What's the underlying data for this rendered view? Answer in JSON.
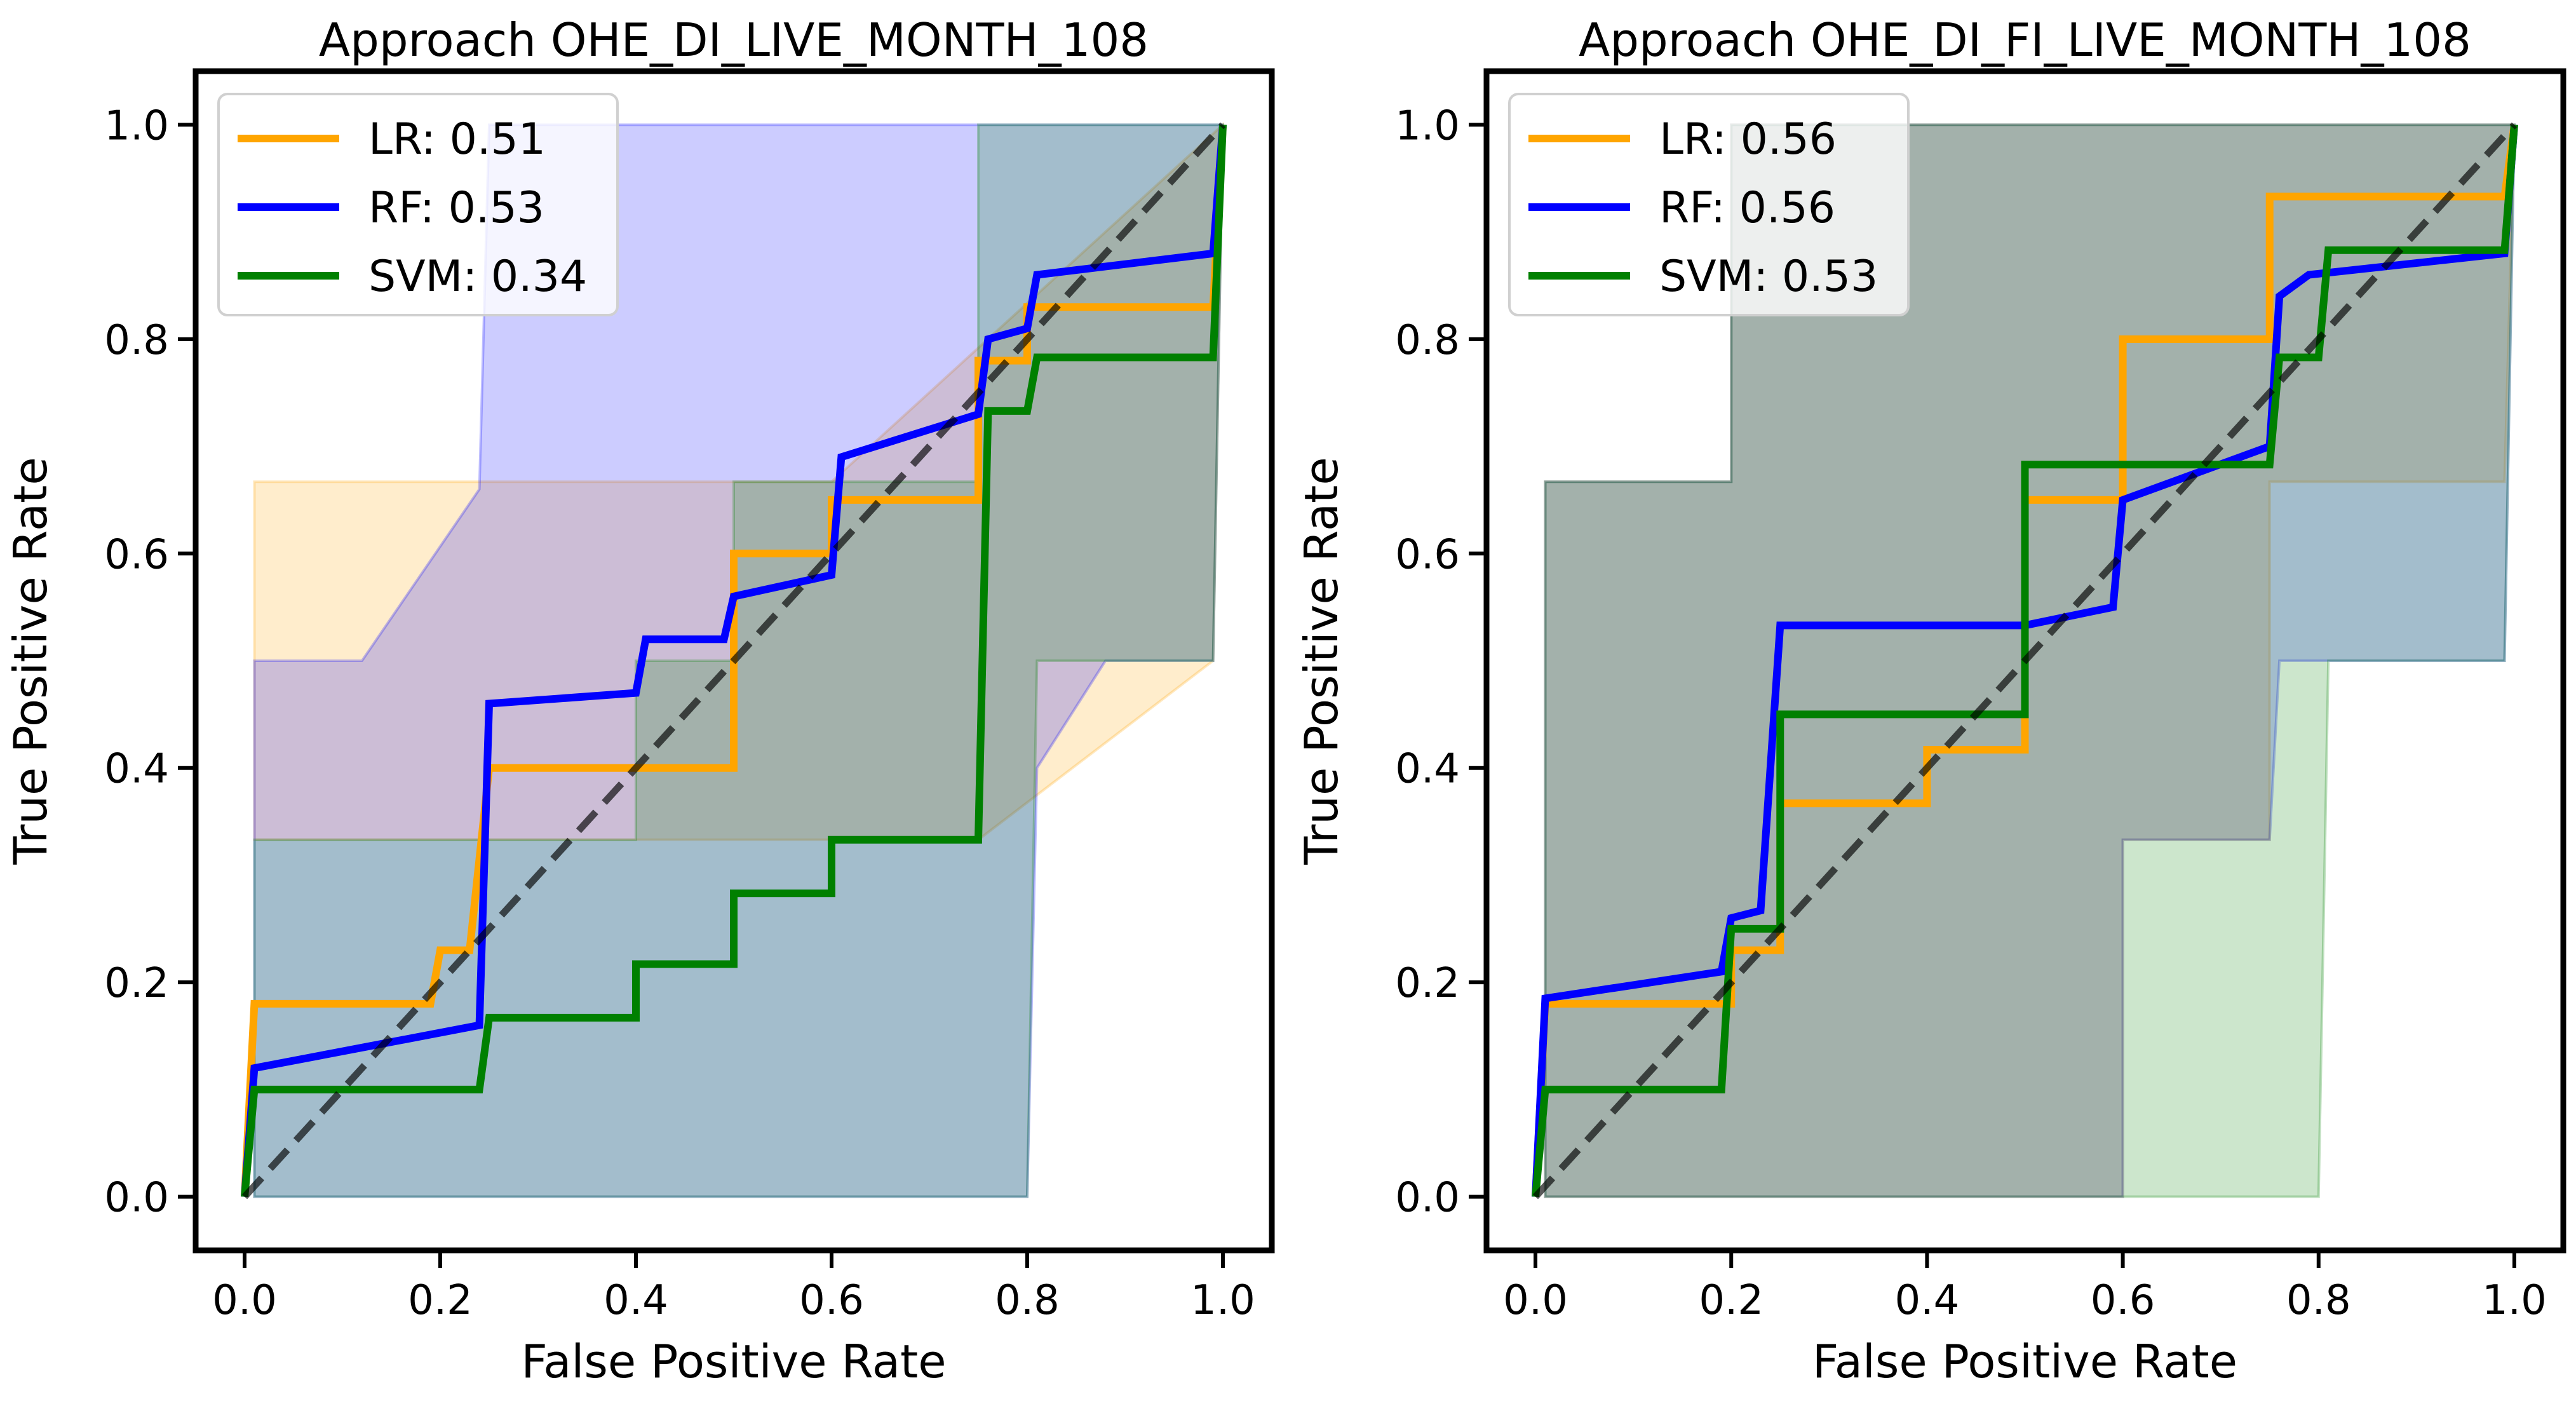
{
  "chart_data": [
    {
      "type": "line",
      "title": "Approach OHE_DI_LIVE_MONTH_108",
      "xlabel": "False Positive Rate",
      "ylabel": "True Positive Rate",
      "xlim": [
        -0.05,
        1.05
      ],
      "ylim": [
        -0.05,
        1.05
      ],
      "xticks": [
        "0.0",
        "0.2",
        "0.4",
        "0.6",
        "0.8",
        "1.0"
      ],
      "yticks": [
        "0.0",
        "0.2",
        "0.4",
        "0.6",
        "0.8",
        "1.0"
      ],
      "legend_position": "top-left",
      "diagonal": [
        [
          0,
          0
        ],
        [
          1,
          1
        ]
      ],
      "series": [
        {
          "name": "LR: 0.51",
          "color": "#ffa500",
          "points": [
            [
              0,
              0
            ],
            [
              0.01,
              0.18
            ],
            [
              0.19,
              0.18
            ],
            [
              0.2,
              0.23
            ],
            [
              0.23,
              0.23
            ],
            [
              0.25,
              0.4
            ],
            [
              0.5,
              0.4
            ],
            [
              0.5,
              0.6
            ],
            [
              0.6,
              0.6
            ],
            [
              0.6,
              0.65
            ],
            [
              0.75,
              0.65
            ],
            [
              0.75,
              0.78
            ],
            [
              0.8,
              0.78
            ],
            [
              0.8,
              0.83
            ],
            [
              0.99,
              0.83
            ],
            [
              1.0,
              1.0
            ]
          ],
          "band": {
            "color": "#ffa500",
            "upper": [
              [
                0.01,
                0.667
              ],
              [
                0.25,
                0.667
              ],
              [
                0.6,
                0.667
              ],
              [
                1.0,
                1.0
              ]
            ],
            "lower": [
              [
                0.01,
                0.333
              ],
              [
                0.6,
                0.333
              ],
              [
                0.75,
                0.333
              ],
              [
                0.99,
                0.5
              ]
            ]
          }
        },
        {
          "name": "RF: 0.53",
          "color": "#0000ff",
          "points": [
            [
              0,
              0
            ],
            [
              0.01,
              0.12
            ],
            [
              0.24,
              0.16
            ],
            [
              0.25,
              0.46
            ],
            [
              0.4,
              0.47
            ],
            [
              0.41,
              0.52
            ],
            [
              0.49,
              0.52
            ],
            [
              0.5,
              0.56
            ],
            [
              0.6,
              0.58
            ],
            [
              0.61,
              0.69
            ],
            [
              0.75,
              0.73
            ],
            [
              0.76,
              0.8
            ],
            [
              0.8,
              0.81
            ],
            [
              0.81,
              0.86
            ],
            [
              0.99,
              0.88
            ],
            [
              1.0,
              1.0
            ]
          ],
          "band": {
            "color": "#0000ff",
            "upper": [
              [
                0.01,
                0.5
              ],
              [
                0.12,
                0.5
              ],
              [
                0.24,
                0.66
              ],
              [
                0.25,
                1.0
              ],
              [
                1.0,
                1.0
              ]
            ],
            "lower": [
              [
                0.01,
                0.0
              ],
              [
                0.8,
                0.0
              ],
              [
                0.81,
                0.4
              ],
              [
                0.88,
                0.5
              ],
              [
                0.99,
                0.5
              ]
            ]
          }
        },
        {
          "name": "SVM: 0.34",
          "color": "#008000",
          "points": [
            [
              0,
              0
            ],
            [
              0.01,
              0.1
            ],
            [
              0.24,
              0.1
            ],
            [
              0.25,
              0.167
            ],
            [
              0.4,
              0.167
            ],
            [
              0.4,
              0.217
            ],
            [
              0.5,
              0.217
            ],
            [
              0.5,
              0.283
            ],
            [
              0.6,
              0.283
            ],
            [
              0.6,
              0.333
            ],
            [
              0.75,
              0.333
            ],
            [
              0.76,
              0.733
            ],
            [
              0.8,
              0.733
            ],
            [
              0.81,
              0.783
            ],
            [
              0.99,
              0.783
            ],
            [
              1.0,
              1.0
            ]
          ],
          "band": {
            "color": "#008000",
            "upper": [
              [
                0.01,
                0.333
              ],
              [
                0.4,
                0.333
              ],
              [
                0.4,
                0.5
              ],
              [
                0.5,
                0.5
              ],
              [
                0.5,
                0.667
              ],
              [
                0.75,
                0.667
              ],
              [
                0.75,
                1.0
              ],
              [
                1.0,
                1.0
              ]
            ],
            "lower": [
              [
                0.01,
                0.0
              ],
              [
                0.6,
                0.0
              ],
              [
                0.75,
                0.0
              ],
              [
                0.76,
                0.0
              ],
              [
                0.8,
                0.0
              ],
              [
                0.81,
                0.5
              ],
              [
                0.99,
                0.5
              ]
            ]
          }
        }
      ]
    },
    {
      "type": "line",
      "title": "Approach OHE_DI_FI_LIVE_MONTH_108",
      "xlabel": "False Positive Rate",
      "ylabel": "True Positive Rate",
      "xlim": [
        -0.05,
        1.05
      ],
      "ylim": [
        -0.05,
        1.05
      ],
      "xticks": [
        "0.0",
        "0.2",
        "0.4",
        "0.6",
        "0.8",
        "1.0"
      ],
      "yticks": [
        "0.0",
        "0.2",
        "0.4",
        "0.6",
        "0.8",
        "1.0"
      ],
      "legend_position": "top-left",
      "diagonal": [
        [
          0,
          0
        ],
        [
          1,
          1
        ]
      ],
      "series": [
        {
          "name": "LR: 0.56",
          "color": "#ffa500",
          "points": [
            [
              0,
              0
            ],
            [
              0.01,
              0.18
            ],
            [
              0.2,
              0.18
            ],
            [
              0.2,
              0.23
            ],
            [
              0.25,
              0.23
            ],
            [
              0.25,
              0.367
            ],
            [
              0.4,
              0.367
            ],
            [
              0.4,
              0.417
            ],
            [
              0.5,
              0.417
            ],
            [
              0.5,
              0.65
            ],
            [
              0.6,
              0.65
            ],
            [
              0.6,
              0.8
            ],
            [
              0.75,
              0.8
            ],
            [
              0.75,
              0.933
            ],
            [
              0.99,
              0.933
            ],
            [
              1.0,
              1.0
            ]
          ],
          "band": {
            "color": "#ffa500",
            "upper": [
              [
                0.01,
                0.667
              ],
              [
                0.2,
                0.667
              ],
              [
                0.2,
                1.0
              ],
              [
                1.0,
                1.0
              ]
            ],
            "lower": [
              [
                0.01,
                0.0
              ],
              [
                0.6,
                0.0
              ],
              [
                0.6,
                0.333
              ],
              [
                0.75,
                0.333
              ],
              [
                0.75,
                0.667
              ],
              [
                0.99,
                0.667
              ]
            ]
          }
        },
        {
          "name": "RF: 0.56",
          "color": "#0000ff",
          "points": [
            [
              0,
              0
            ],
            [
              0.01,
              0.185
            ],
            [
              0.19,
              0.21
            ],
            [
              0.2,
              0.26
            ],
            [
              0.23,
              0.267
            ],
            [
              0.25,
              0.533
            ],
            [
              0.5,
              0.533
            ],
            [
              0.59,
              0.55
            ],
            [
              0.6,
              0.65
            ],
            [
              0.75,
              0.7
            ],
            [
              0.76,
              0.84
            ],
            [
              0.79,
              0.86
            ],
            [
              0.99,
              0.88
            ],
            [
              1.0,
              1.0
            ]
          ],
          "band": {
            "color": "#0000ff",
            "upper": [
              [
                0.01,
                0.667
              ],
              [
                0.2,
                0.667
              ],
              [
                0.2,
                1.0
              ],
              [
                1.0,
                1.0
              ]
            ],
            "lower": [
              [
                0.01,
                0.0
              ],
              [
                0.6,
                0.0
              ],
              [
                0.6,
                0.333
              ],
              [
                0.75,
                0.333
              ],
              [
                0.76,
                0.5
              ],
              [
                0.99,
                0.5
              ]
            ]
          }
        },
        {
          "name": "SVM: 0.53",
          "color": "#008000",
          "points": [
            [
              0,
              0
            ],
            [
              0.01,
              0.1
            ],
            [
              0.19,
              0.1
            ],
            [
              0.2,
              0.25
            ],
            [
              0.25,
              0.25
            ],
            [
              0.25,
              0.45
            ],
            [
              0.5,
              0.45
            ],
            [
              0.5,
              0.683
            ],
            [
              0.75,
              0.683
            ],
            [
              0.76,
              0.783
            ],
            [
              0.8,
              0.783
            ],
            [
              0.81,
              0.883
            ],
            [
              0.99,
              0.883
            ],
            [
              1.0,
              1.0
            ]
          ],
          "band": {
            "color": "#008000",
            "upper": [
              [
                0.01,
                0.667
              ],
              [
                0.2,
                0.667
              ],
              [
                0.2,
                1.0
              ],
              [
                0.4,
                1.0
              ],
              [
                1.0,
                1.0
              ]
            ],
            "lower": [
              [
                0.01,
                0.0
              ],
              [
                0.6,
                0.0
              ],
              [
                0.8,
                0.0
              ],
              [
                0.81,
                0.5
              ],
              [
                0.99,
                0.5
              ]
            ]
          }
        }
      ]
    }
  ]
}
